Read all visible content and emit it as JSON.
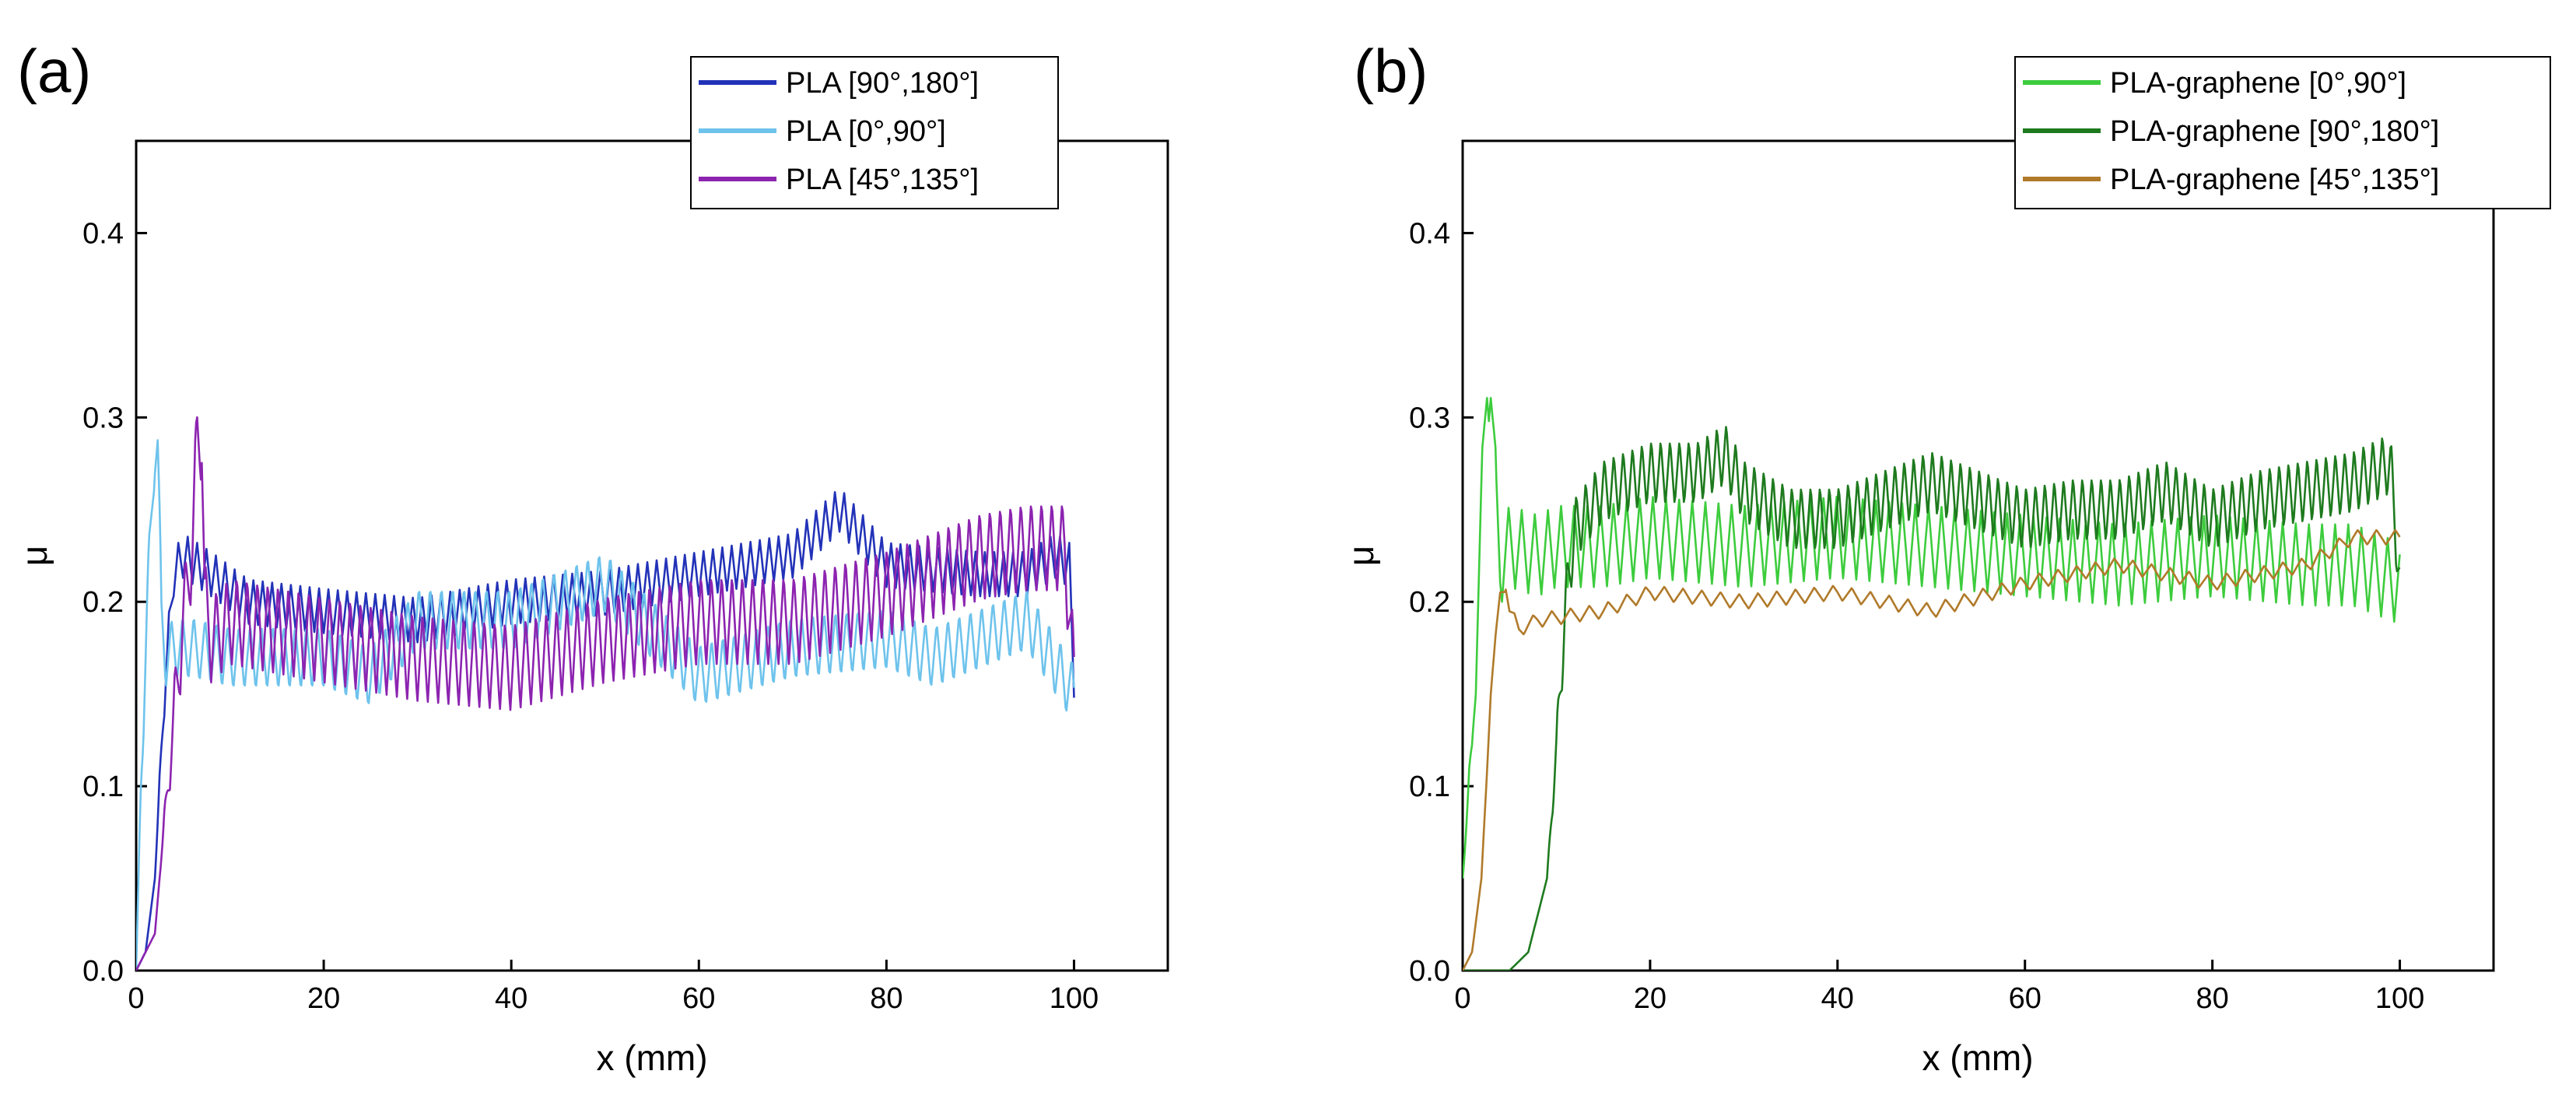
{
  "chart_data": [
    {
      "type": "line",
      "panel_label": "(a)",
      "xlabel": "x (mm)",
      "ylabel": "μ",
      "xlim": [
        0,
        110
      ],
      "ylim": [
        0,
        0.45
      ],
      "x_ticks": [
        0,
        20,
        40,
        60,
        80,
        100
      ],
      "x_tick_labels": [
        "0",
        "20",
        "40",
        "60",
        "80",
        "100"
      ],
      "y_ticks": [
        0.0,
        0.1,
        0.2,
        0.3,
        0.4
      ],
      "y_tick_labels": [
        "0.0",
        "0.1",
        "0.2",
        "0.3",
        "0.4"
      ],
      "legend_position": "top-right",
      "series": [
        {
          "name": "PLA [90°,180°]",
          "color": "#2232b8",
          "x": [
            0,
            1,
            2,
            3,
            4,
            5,
            8,
            12,
            20,
            30,
            40,
            50,
            60,
            70,
            75,
            80,
            90,
            95,
            98,
            99.5,
            100
          ],
          "values": [
            0,
            0.01,
            0.05,
            0.15,
            0.215,
            0.225,
            0.215,
            0.2,
            0.195,
            0.19,
            0.2,
            0.205,
            0.215,
            0.225,
            0.25,
            0.22,
            0.215,
            0.215,
            0.225,
            0.22,
            0.16
          ],
          "osc_amp": 0.012,
          "osc_period": 1.0
        },
        {
          "name": "PLA [0°,90°]",
          "color": "#6ec3ec",
          "x": [
            0,
            0.5,
            1.2,
            2,
            2.3,
            2.7,
            3.2,
            4,
            6,
            10,
            20,
            25,
            30,
            40,
            50,
            60,
            70,
            80,
            85,
            90,
            95,
            100
          ],
          "values": [
            0,
            0.1,
            0.2,
            0.285,
            0.285,
            0.19,
            0.17,
            0.175,
            0.175,
            0.17,
            0.17,
            0.16,
            0.19,
            0.19,
            0.21,
            0.16,
            0.175,
            0.18,
            0.17,
            0.18,
            0.19,
            0.15
          ],
          "osc_amp": 0.018,
          "osc_period": 1.2
        },
        {
          "name": "PLA [45°,135°]",
          "color": "#8c24b0",
          "x": [
            0,
            2,
            3,
            5,
            6,
            6.5,
            7,
            7.3,
            8,
            10,
            20,
            30,
            40,
            50,
            60,
            70,
            80,
            85,
            90,
            95,
            99,
            100
          ],
          "values": [
            0,
            0.02,
            0.08,
            0.19,
            0.23,
            0.29,
            0.29,
            0.2,
            0.18,
            0.19,
            0.18,
            0.17,
            0.165,
            0.18,
            0.19,
            0.19,
            0.205,
            0.215,
            0.225,
            0.23,
            0.23,
            0.16
          ],
          "osc_amp": 0.025,
          "osc_period": 1.1
        }
      ]
    },
    {
      "type": "line",
      "panel_label": "(b)",
      "xlabel": "x (mm)",
      "ylabel": "μ",
      "xlim": [
        0,
        110
      ],
      "ylim": [
        0,
        0.45
      ],
      "x_ticks": [
        0,
        20,
        40,
        60,
        80,
        100
      ],
      "x_tick_labels": [
        "0",
        "20",
        "40",
        "60",
        "80",
        "100"
      ],
      "y_ticks": [
        0.0,
        0.1,
        0.2,
        0.3,
        0.4
      ],
      "y_tick_labels": [
        "0.0",
        "0.1",
        "0.2",
        "0.3",
        "0.4"
      ],
      "legend_position": "top-right",
      "series": [
        {
          "name": "PLA-graphene [0°,90°]",
          "color": "#3dcc3d",
          "x": [
            0,
            1,
            2,
            2.6,
            3,
            3.6,
            4,
            5,
            8,
            10,
            15,
            20,
            30,
            40,
            50,
            60,
            70,
            80,
            90,
            95,
            100
          ],
          "values": [
            0.05,
            0.12,
            0.25,
            0.32,
            0.32,
            0.25,
            0.22,
            0.23,
            0.225,
            0.23,
            0.23,
            0.235,
            0.23,
            0.235,
            0.23,
            0.225,
            0.22,
            0.225,
            0.22,
            0.22,
            0.21
          ],
          "osc_amp": 0.022,
          "osc_period": 1.4
        },
        {
          "name": "PLA-graphene [90°,180°]",
          "color": "#1e7a1e",
          "x": [
            0,
            5,
            7,
            9,
            10,
            11,
            12,
            15,
            20,
            25,
            28,
            30,
            35,
            40,
            45,
            50,
            55,
            60,
            65,
            70,
            75,
            80,
            85,
            90,
            95,
            99,
            100
          ],
          "values": [
            0,
            0,
            0.01,
            0.05,
            0.12,
            0.2,
            0.24,
            0.26,
            0.27,
            0.27,
            0.28,
            0.26,
            0.245,
            0.245,
            0.255,
            0.265,
            0.255,
            0.245,
            0.25,
            0.25,
            0.26,
            0.245,
            0.255,
            0.26,
            0.265,
            0.275,
            0.21
          ],
          "osc_amp": 0.018,
          "osc_period": 1.0
        },
        {
          "name": "PLA-graphene [45°,135°]",
          "color": "#b07a2a",
          "x": [
            0,
            1,
            2,
            3,
            4,
            4.6,
            5,
            6,
            8,
            15,
            20,
            30,
            40,
            50,
            60,
            70,
            75,
            80,
            90,
            95,
            100
          ],
          "values": [
            0,
            0.01,
            0.05,
            0.15,
            0.205,
            0.21,
            0.195,
            0.185,
            0.19,
            0.195,
            0.205,
            0.2,
            0.205,
            0.195,
            0.21,
            0.22,
            0.215,
            0.21,
            0.22,
            0.235,
            0.235
          ],
          "osc_amp": 0.004,
          "osc_period": 2.0
        }
      ]
    }
  ]
}
